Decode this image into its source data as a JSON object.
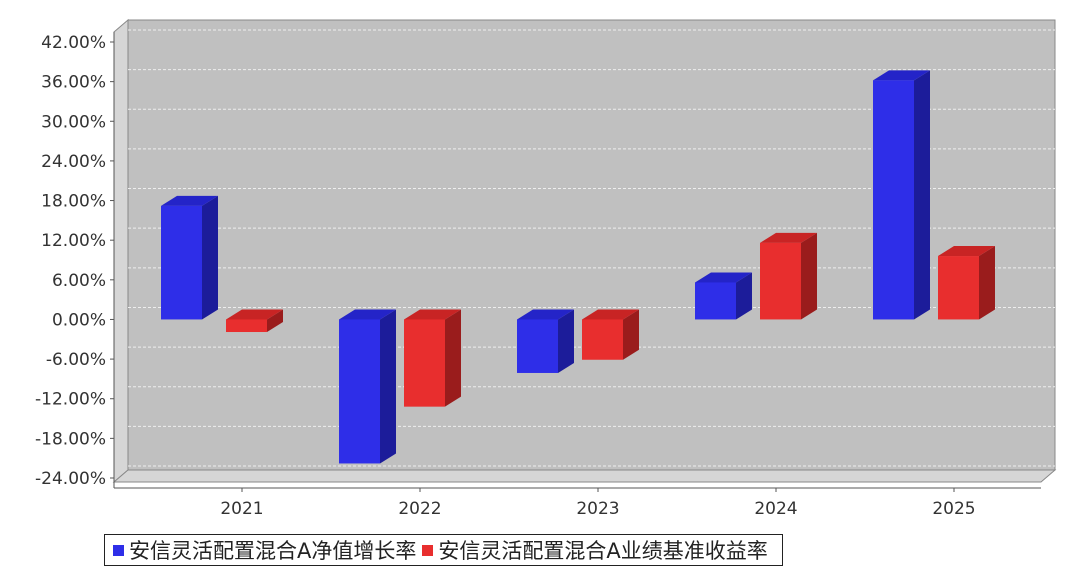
{
  "chart_data": {
    "type": "bar",
    "categories": [
      "2021",
      "2022",
      "2023",
      "2024",
      "2025"
    ],
    "series": [
      {
        "name": "安信灵活配置混合A净值增长率",
        "values": [
          17.2,
          -21.8,
          -8.1,
          5.6,
          36.2
        ],
        "color": "#2e2ee8"
      },
      {
        "name": "安信灵活配置混合A业绩基准收益率",
        "values": [
          -1.9,
          -13.2,
          -6.1,
          11.6,
          9.6
        ],
        "color": "#e82e2e"
      }
    ],
    "ylim": [
      -24,
      42
    ],
    "yticks": [
      "42.00%",
      "36.00%",
      "30.00%",
      "24.00%",
      "18.00%",
      "12.00%",
      "6.00%",
      "0.00%",
      "-6.00%",
      "-12.00%",
      "-18.00%",
      "-24.00%"
    ],
    "grid": true,
    "legend_position": "bottom"
  }
}
